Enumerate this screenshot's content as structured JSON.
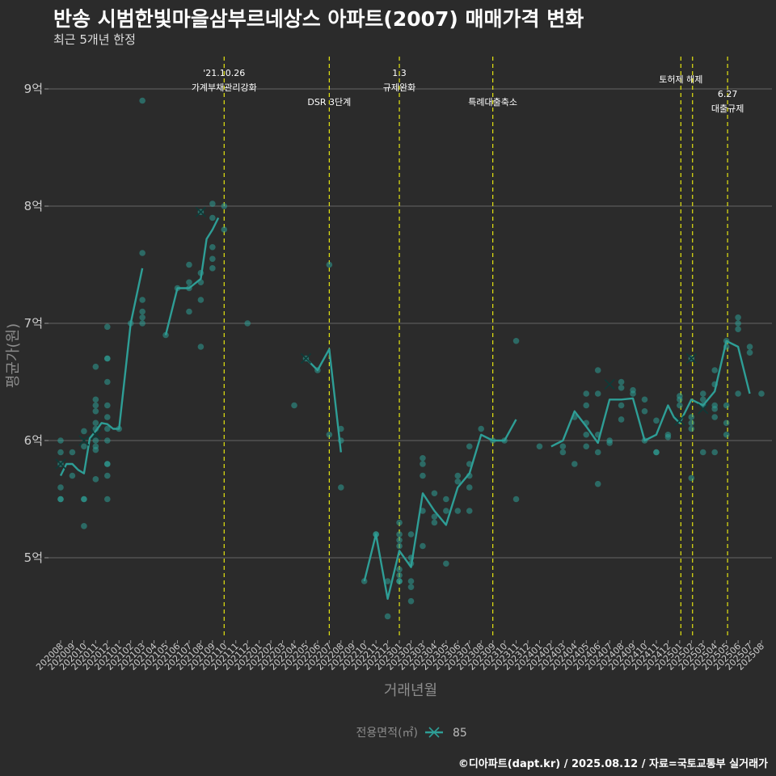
{
  "header": {
    "title": "반송 시범한빛마을삼부르네상스 아파트(2007) 매매가격 변화",
    "subtitle": "최근 5개년 한정"
  },
  "footer": {
    "caption": "©디아파트(dapt.kr) / 2025.08.12 / 자료=국토교통부 실거래가"
  },
  "colors": {
    "background": "#2b2b2b",
    "series": "#2e9e96",
    "event_line": "#e5e510",
    "grid": "#5a5a5a"
  },
  "chart_data": {
    "type": "line",
    "title": "반송 시범한빛마을삼부르네상스 아파트(2007) 매매가격 변화",
    "xlabel": "거래년월",
    "ylabel": "평균가(원)",
    "ylim": [
      4.3,
      9.3
    ],
    "yticks": [
      5,
      6,
      7,
      8,
      9
    ],
    "ytick_labels": [
      "5억",
      "6억",
      "7억",
      "8억",
      "9억"
    ],
    "grid": true,
    "legend": {
      "title": "전용면적(㎡)",
      "entries": [
        "85"
      ],
      "position": "bottom"
    },
    "x_categories": [
      "202008",
      "202009",
      "202010",
      "202011",
      "202012",
      "202101",
      "202102",
      "202103",
      "202104",
      "202105",
      "202106",
      "202107",
      "202108",
      "202109",
      "202110",
      "202111",
      "202112",
      "202201",
      "202202",
      "202203",
      "202204",
      "202205",
      "202206",
      "202207",
      "202208",
      "202209",
      "202210",
      "202211",
      "202212",
      "202301",
      "202302",
      "202303",
      "202304",
      "202305",
      "202306",
      "202307",
      "202308",
      "202309",
      "202310",
      "202311",
      "202312",
      "202401",
      "202402",
      "202403",
      "202404",
      "202405",
      "202406",
      "202407",
      "202408",
      "202409",
      "202410",
      "202411",
      "202412",
      "202501",
      "202502",
      "202503",
      "202504",
      "202505",
      "202506",
      "202507",
      "202508"
    ],
    "series": [
      {
        "name": "85",
        "segments": [
          [
            [
              0,
              5.7
            ],
            [
              0.5,
              5.8
            ],
            [
              1,
              5.8
            ],
            [
              1.5,
              5.75
            ],
            [
              2,
              5.72
            ],
            [
              2.5,
              6.02
            ],
            [
              3,
              6.08
            ],
            [
              3.5,
              6.15
            ],
            [
              4,
              6.14
            ],
            [
              4.5,
              6.1
            ],
            [
              5,
              6.1
            ],
            [
              5.5,
              6.55
            ],
            [
              6,
              7.0
            ],
            [
              7,
              7.47
            ]
          ],
          [
            [
              9,
              6.9
            ],
            [
              10,
              7.3
            ],
            [
              11,
              7.3
            ],
            [
              12,
              7.38
            ],
            [
              12.5,
              7.72
            ],
            [
              13,
              7.8
            ],
            [
              13.5,
              7.9
            ]
          ],
          [
            [
              21,
              6.7
            ],
            [
              22,
              6.6
            ],
            [
              23,
              6.78
            ],
            [
              24,
              5.9
            ]
          ],
          [
            [
              26,
              4.8
            ],
            [
              27,
              5.2
            ],
            [
              28,
              4.65
            ],
            [
              29,
              5.06
            ],
            [
              30,
              4.92
            ],
            [
              31,
              5.55
            ],
            [
              32,
              5.4
            ],
            [
              33,
              5.28
            ],
            [
              34,
              5.6
            ],
            [
              35,
              5.72
            ],
            [
              36,
              6.05
            ],
            [
              37,
              6.0
            ],
            [
              38,
              6.0
            ],
            [
              39,
              6.18
            ]
          ],
          [
            [
              42,
              5.95
            ],
            [
              43,
              6.0
            ],
            [
              44,
              6.25
            ],
            [
              45,
              6.12
            ],
            [
              46,
              5.98
            ],
            [
              47,
              6.35
            ],
            [
              48,
              6.35
            ],
            [
              49,
              6.36
            ],
            [
              50,
              6.0
            ],
            [
              51,
              6.05
            ],
            [
              52,
              6.3
            ],
            [
              52.5,
              6.2
            ],
            [
              53,
              6.15
            ],
            [
              54,
              6.35
            ],
            [
              55,
              6.3
            ],
            [
              56,
              6.42
            ],
            [
              57,
              6.85
            ],
            [
              58,
              6.8
            ],
            [
              59,
              6.4
            ]
          ]
        ],
        "markers": [
          [
            0,
            5.8
          ],
          [
            2,
            6.0
          ],
          [
            3,
            6.05
          ],
          [
            12,
            7.95
          ],
          [
            21,
            6.7
          ],
          [
            47,
            6.48
          ],
          [
            53,
            6.17
          ],
          [
            54,
            6.7
          ],
          [
            55,
            6.27
          ]
        ],
        "points": [
          [
            0,
            6.0
          ],
          [
            0,
            5.9
          ],
          [
            0,
            5.6
          ],
          [
            0,
            5.5
          ],
          [
            0,
            5.5
          ],
          [
            0,
            5.8
          ],
          [
            1,
            5.9
          ],
          [
            1,
            5.7
          ],
          [
            2,
            6.08
          ],
          [
            2,
            5.95
          ],
          [
            2,
            5.5
          ],
          [
            2,
            5.5
          ],
          [
            2,
            5.27
          ],
          [
            3,
            6.63
          ],
          [
            3,
            6.35
          ],
          [
            3,
            6.3
          ],
          [
            3,
            6.25
          ],
          [
            3,
            6.15
          ],
          [
            3,
            6.1
          ],
          [
            3,
            6.0
          ],
          [
            3,
            5.95
          ],
          [
            3,
            5.92
          ],
          [
            3,
            5.67
          ],
          [
            4,
            6.97
          ],
          [
            4,
            6.7
          ],
          [
            4,
            6.7
          ],
          [
            4,
            6.5
          ],
          [
            4,
            6.3
          ],
          [
            4,
            6.2
          ],
          [
            4,
            6.1
          ],
          [
            4,
            6.0
          ],
          [
            4,
            5.8
          ],
          [
            4,
            5.8
          ],
          [
            4,
            5.7
          ],
          [
            4,
            5.5
          ],
          [
            5,
            6.1
          ],
          [
            6,
            7.0
          ],
          [
            7,
            8.9
          ],
          [
            7,
            7.6
          ],
          [
            7,
            7.2
          ],
          [
            7,
            7.1
          ],
          [
            7,
            7.05
          ],
          [
            7,
            7.0
          ],
          [
            9,
            6.9
          ],
          [
            10,
            7.3
          ],
          [
            11,
            7.5
          ],
          [
            11,
            7.35
          ],
          [
            11,
            7.3
          ],
          [
            11,
            7.1
          ],
          [
            12,
            7.95
          ],
          [
            12,
            7.43
          ],
          [
            12,
            7.35
          ],
          [
            12,
            7.2
          ],
          [
            12,
            6.8
          ],
          [
            13,
            8.02
          ],
          [
            13,
            7.9
          ],
          [
            13,
            7.65
          ],
          [
            13,
            7.55
          ],
          [
            13,
            7.47
          ],
          [
            14,
            8.0
          ],
          [
            14,
            7.8
          ],
          [
            16,
            7.0
          ],
          [
            20,
            6.3
          ],
          [
            21,
            6.7
          ],
          [
            22,
            6.6
          ],
          [
            23,
            7.5
          ],
          [
            23,
            6.05
          ],
          [
            24,
            6.1
          ],
          [
            24,
            6.0
          ],
          [
            24,
            5.6
          ],
          [
            26,
            4.8
          ],
          [
            27,
            5.2
          ],
          [
            27,
            5.2
          ],
          [
            28,
            4.8
          ],
          [
            28,
            4.5
          ],
          [
            29,
            5.3
          ],
          [
            29,
            5.2
          ],
          [
            29,
            5.15
          ],
          [
            29,
            5.1
          ],
          [
            29,
            4.9
          ],
          [
            29,
            4.85
          ],
          [
            29,
            4.8
          ],
          [
            29,
            4.8
          ],
          [
            30,
            5.2
          ],
          [
            30,
            5.0
          ],
          [
            30,
            4.95
          ],
          [
            30,
            4.8
          ],
          [
            30,
            4.75
          ],
          [
            30,
            4.63
          ],
          [
            31,
            5.85
          ],
          [
            31,
            5.8
          ],
          [
            31,
            5.7
          ],
          [
            31,
            5.4
          ],
          [
            31,
            5.1
          ],
          [
            32,
            5.55
          ],
          [
            32,
            5.35
          ],
          [
            32,
            5.3
          ],
          [
            33,
            5.5
          ],
          [
            33,
            5.4
          ],
          [
            33,
            4.95
          ],
          [
            34,
            5.7
          ],
          [
            34,
            5.65
          ],
          [
            34,
            5.4
          ],
          [
            35,
            5.95
          ],
          [
            35,
            5.8
          ],
          [
            35,
            5.7
          ],
          [
            35,
            5.6
          ],
          [
            35,
            5.4
          ],
          [
            36,
            6.1
          ],
          [
            37,
            6.0
          ],
          [
            38,
            6.0
          ],
          [
            39,
            6.85
          ],
          [
            39,
            5.5
          ],
          [
            41,
            5.95
          ],
          [
            43,
            5.95
          ],
          [
            43,
            5.9
          ],
          [
            44,
            6.2
          ],
          [
            44,
            5.8
          ],
          [
            45,
            6.4
          ],
          [
            45,
            6.3
          ],
          [
            45,
            6.15
          ],
          [
            45,
            6.05
          ],
          [
            45,
            5.95
          ],
          [
            46,
            6.6
          ],
          [
            46,
            6.4
          ],
          [
            46,
            6.05
          ],
          [
            46,
            5.9
          ],
          [
            46,
            5.63
          ],
          [
            47,
            6.0
          ],
          [
            47,
            5.98
          ],
          [
            48,
            6.5
          ],
          [
            48,
            6.45
          ],
          [
            48,
            6.3
          ],
          [
            48,
            6.18
          ],
          [
            49,
            6.43
          ],
          [
            49,
            6.4
          ],
          [
            50,
            6.35
          ],
          [
            50,
            6.25
          ],
          [
            50,
            6.0
          ],
          [
            51,
            6.17
          ],
          [
            51,
            5.9
          ],
          [
            51,
            5.9
          ],
          [
            52,
            6.05
          ],
          [
            52,
            6.03
          ],
          [
            53,
            6.38
          ],
          [
            53,
            6.35
          ],
          [
            53,
            6.3
          ],
          [
            54,
            6.7
          ],
          [
            54,
            6.2
          ],
          [
            54,
            6.15
          ],
          [
            54,
            6.1
          ],
          [
            54,
            5.68
          ],
          [
            55,
            6.4
          ],
          [
            55,
            6.35
          ],
          [
            55,
            6.3
          ],
          [
            55,
            5.9
          ],
          [
            56,
            6.6
          ],
          [
            56,
            6.48
          ],
          [
            56,
            6.3
          ],
          [
            56,
            6.27
          ],
          [
            56,
            6.2
          ],
          [
            56,
            5.9
          ],
          [
            57,
            6.85
          ],
          [
            57,
            6.8
          ],
          [
            57,
            6.3
          ],
          [
            57,
            6.15
          ],
          [
            57,
            6.05
          ],
          [
            58,
            7.05
          ],
          [
            58,
            7.0
          ],
          [
            58,
            6.95
          ],
          [
            58,
            6.4
          ],
          [
            59,
            6.8
          ],
          [
            59,
            6.75
          ],
          [
            60,
            6.4
          ]
        ]
      }
    ],
    "events": [
      {
        "label": "'21.10.26\n가계부채관리강화",
        "x": 14
      },
      {
        "label": "DSR 3단계",
        "x": 23
      },
      {
        "label": "1.3\n규제완화",
        "x": 29
      },
      {
        "label": "특례대출축소",
        "x": 37
      },
      {
        "label": "토허제 해제",
        "x": 53.1
      },
      {
        "label": "6.27\n대출규제",
        "x": 57.1
      }
    ],
    "extra_event_lines": [
      54.1
    ]
  }
}
